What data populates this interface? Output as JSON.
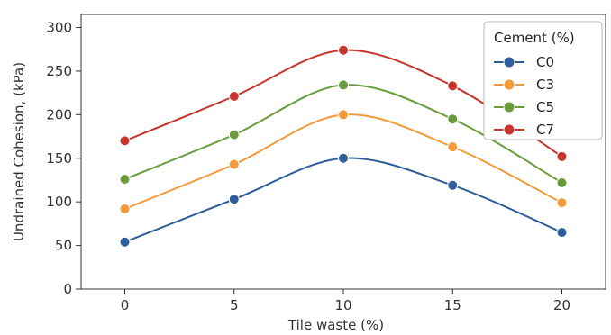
{
  "chart_data": {
    "type": "line",
    "title": "",
    "xlabel": "Tile waste (%)",
    "ylabel": "Undrained Cohesion, (kPa)",
    "x": [
      0,
      5,
      10,
      15,
      20
    ],
    "x_ticks": [
      "0",
      "5",
      "10",
      "15",
      "20"
    ],
    "y_ticks": [
      "0",
      "50",
      "100",
      "150",
      "200",
      "250",
      "300"
    ],
    "xlim": [
      -2,
      22
    ],
    "ylim": [
      0,
      315
    ],
    "grid": false,
    "legend": {
      "title": "Cement (%)",
      "placement": "top-right"
    },
    "series": [
      {
        "name": "C0",
        "color": "#2e5f9b",
        "values": [
          54,
          103,
          150,
          119,
          65
        ]
      },
      {
        "name": "C3",
        "color": "#f39a3b",
        "values": [
          92,
          143,
          200,
          163,
          99
        ]
      },
      {
        "name": "C5",
        "color": "#6a9c3c",
        "values": [
          126,
          177,
          234,
          195,
          122
        ]
      },
      {
        "name": "C7",
        "color": "#c8352c",
        "values": [
          170,
          221,
          274,
          233,
          152
        ]
      }
    ]
  }
}
